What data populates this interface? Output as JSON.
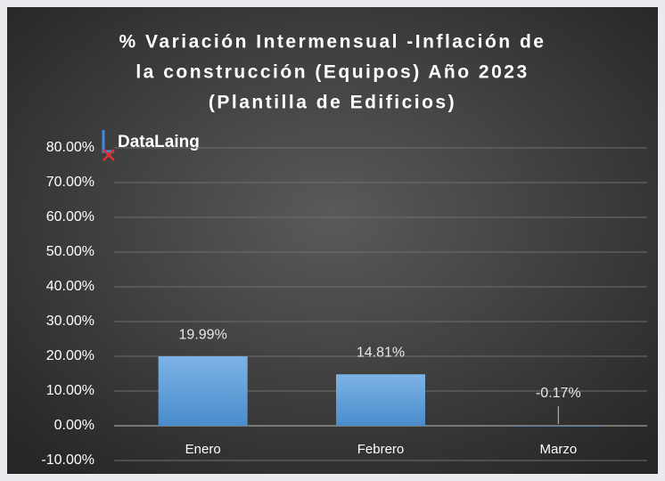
{
  "chart_data": {
    "type": "bar",
    "title": [
      "% Variación Intermensual -Inflación de",
      "la construcción (Equipos) Año 2023",
      "(Plantilla de Edificios)"
    ],
    "watermark": "DataLaing",
    "categories": [
      "Enero",
      "Febrero",
      "Marzo"
    ],
    "values": [
      19.99,
      14.81,
      -0.17
    ],
    "value_labels": [
      "19.99%",
      "14.81%",
      "-0.17%"
    ],
    "color": "#5b9bd5",
    "ylim": [
      -10,
      80
    ],
    "yticks": [
      {
        "value": -10,
        "label": "-10.00%"
      },
      {
        "value": 0,
        "label": "0.00%"
      },
      {
        "value": 10,
        "label": "10.00%"
      },
      {
        "value": 20,
        "label": "20.00%"
      },
      {
        "value": 30,
        "label": "30.00%"
      },
      {
        "value": 40,
        "label": "40.00%"
      },
      {
        "value": 50,
        "label": "50.00%"
      },
      {
        "value": 60,
        "label": "60.00%"
      },
      {
        "value": 70,
        "label": "70.00%"
      },
      {
        "value": 80,
        "label": "80.00%"
      }
    ],
    "grid": true
  }
}
